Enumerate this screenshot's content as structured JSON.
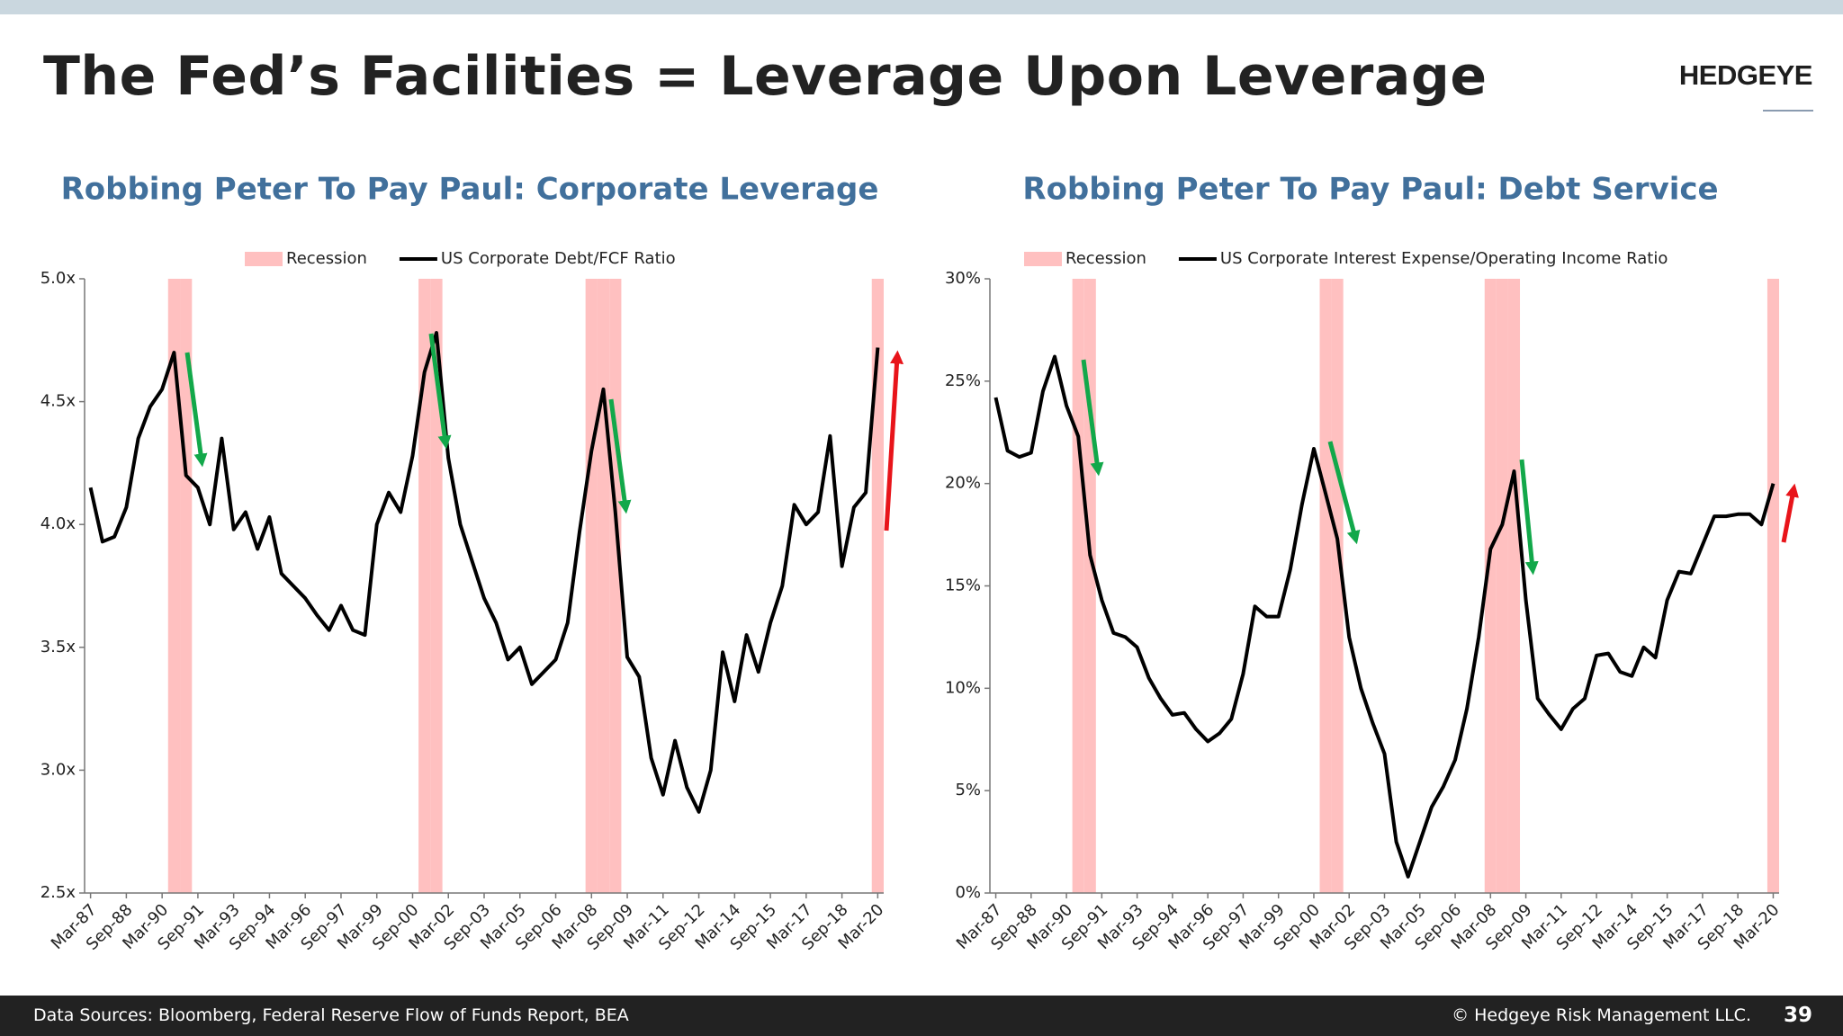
{
  "title": "The Fed’s Facilities = Leverage Upon Leverage",
  "logo": "HEDGEYE",
  "footer": {
    "source": "Data Sources: Bloomberg, Federal Reserve Flow of Funds Report, BEA",
    "copyright": "© Hedgeye Risk Management LLC.",
    "page": "39"
  },
  "chart_data": [
    {
      "type": "line",
      "title": "Robbing Peter To Pay Paul: Corporate Leverage",
      "categories": [
        "Mar-87",
        null,
        null,
        "Sep-88",
        null,
        null,
        "Mar-90",
        null,
        null,
        "Sep-91",
        null,
        null,
        "Mar-93",
        null,
        null,
        "Sep-94",
        null,
        null,
        "Mar-96",
        null,
        null,
        "Sep-97",
        null,
        null,
        "Mar-99",
        null,
        null,
        "Sep-00",
        null,
        null,
        "Mar-02",
        null,
        null,
        "Sep-03",
        null,
        null,
        "Mar-05",
        null,
        null,
        "Sep-06",
        null,
        null,
        "Mar-08",
        null,
        null,
        "Sep-09",
        null,
        null,
        "Mar-11",
        null,
        null,
        "Sep-12",
        null,
        null,
        "Mar-14",
        null,
        null,
        "Sep-15",
        null,
        null,
        "Mar-17",
        null,
        null,
        "Sep-18",
        null,
        null,
        "Mar-20"
      ],
      "series": [
        {
          "name": "Recession",
          "type": "bar",
          "color": "#ffc0c0",
          "values": [
            null,
            null,
            null,
            null,
            null,
            null,
            null,
            5,
            5,
            null,
            null,
            null,
            null,
            null,
            null,
            null,
            null,
            null,
            null,
            null,
            null,
            null,
            null,
            null,
            null,
            null,
            null,
            null,
            5,
            5,
            null,
            null,
            null,
            null,
            null,
            null,
            null,
            null,
            null,
            null,
            null,
            null,
            5,
            5,
            5,
            null,
            null,
            null,
            null,
            null,
            null,
            null,
            null,
            null,
            null,
            null,
            null,
            null,
            null,
            null,
            null,
            null,
            null,
            null,
            null,
            null,
            5
          ]
        },
        {
          "name": "US Corporate Debt/FCF Ratio",
          "type": "line",
          "color": "#000000",
          "values": [
            4.15,
            3.93,
            3.95,
            4.07,
            4.35,
            4.48,
            4.55,
            4.7,
            4.2,
            4.15,
            4.0,
            4.35,
            3.98,
            4.05,
            3.9,
            4.03,
            3.8,
            3.75,
            3.7,
            3.63,
            3.57,
            3.67,
            3.57,
            3.55,
            4.0,
            4.13,
            4.05,
            4.28,
            4.62,
            4.78,
            4.27,
            4.0,
            3.85,
            3.7,
            3.6,
            3.45,
            3.5,
            3.35,
            3.4,
            3.45,
            3.6,
            3.97,
            4.3,
            4.55,
            4.05,
            3.46,
            3.38,
            3.05,
            2.9,
            3.12,
            2.93,
            2.83,
            3.0,
            3.48,
            3.28,
            3.55,
            3.4,
            3.6,
            3.75,
            4.08,
            4.0,
            4.05,
            4.36,
            3.83,
            4.07,
            4.13,
            4.72
          ]
        }
      ],
      "ylim": [
        2.5,
        5
      ],
      "yticks": [
        {
          "value": 2.5,
          "label": "2.5x"
        },
        {
          "value": 3,
          "label": "3.0x"
        },
        {
          "value": 3.5,
          "label": "3.5x"
        },
        {
          "value": 4,
          "label": "4.0x"
        },
        {
          "value": 4.5,
          "label": "4.5x"
        },
        {
          "value": 5,
          "label": "5.0x"
        }
      ],
      "grid": false,
      "legend": "top"
    },
    {
      "type": "line",
      "title": "Robbing Peter To Pay Paul: Debt Service",
      "categories": [
        "Mar-87",
        null,
        null,
        "Sep-88",
        null,
        null,
        "Mar-90",
        null,
        null,
        "Sep-91",
        null,
        null,
        "Mar-93",
        null,
        null,
        "Sep-94",
        null,
        null,
        "Mar-96",
        null,
        null,
        "Sep-97",
        null,
        null,
        "Mar-99",
        null,
        null,
        "Sep-00",
        null,
        null,
        "Mar-02",
        null,
        null,
        "Sep-03",
        null,
        null,
        "Mar-05",
        null,
        null,
        "Sep-06",
        null,
        null,
        "Mar-08",
        null,
        null,
        "Sep-09",
        null,
        null,
        "Mar-11",
        null,
        null,
        "Sep-12",
        null,
        null,
        "Mar-14",
        null,
        null,
        "Sep-15",
        null,
        null,
        "Mar-17",
        null,
        null,
        "Sep-18",
        null,
        null,
        "Mar-20"
      ],
      "series": [
        {
          "name": "Recession",
          "type": "bar",
          "color": "#ffc0c0",
          "values": [
            null,
            null,
            null,
            null,
            null,
            null,
            null,
            30,
            30,
            null,
            null,
            null,
            null,
            null,
            null,
            null,
            null,
            null,
            null,
            null,
            null,
            null,
            null,
            null,
            null,
            null,
            null,
            null,
            30,
            30,
            null,
            null,
            null,
            null,
            null,
            null,
            null,
            null,
            null,
            null,
            null,
            null,
            30,
            30,
            30,
            null,
            null,
            null,
            null,
            null,
            null,
            null,
            null,
            null,
            null,
            null,
            null,
            null,
            null,
            null,
            null,
            null,
            null,
            null,
            null,
            null,
            30
          ]
        },
        {
          "name": "US Corporate Interest Expense/Operating Income Ratio",
          "type": "line",
          "color": "#000000",
          "values": [
            24.2,
            21.6,
            21.3,
            21.5,
            24.5,
            26.2,
            23.8,
            22.3,
            16.5,
            14.3,
            12.7,
            12.5,
            12.0,
            10.5,
            9.5,
            8.7,
            8.8,
            8.0,
            7.4,
            7.8,
            8.5,
            10.7,
            14.0,
            13.5,
            13.5,
            15.8,
            19.0,
            21.7,
            19.5,
            17.3,
            12.5,
            10.0,
            8.3,
            6.8,
            2.5,
            0.8,
            2.5,
            4.2,
            5.2,
            6.5,
            9.0,
            12.5,
            16.8,
            18.0,
            20.6,
            14.3,
            9.5,
            8.7,
            8.0,
            9.0,
            9.5,
            11.6,
            11.7,
            10.8,
            10.6,
            12.0,
            11.5,
            14.3,
            15.7,
            15.6,
            17.0,
            18.4,
            18.4,
            18.5,
            18.5,
            18.0,
            20.0
          ]
        }
      ],
      "ylim": [
        0,
        30
      ],
      "yticks": [
        {
          "value": 0,
          "label": "0%"
        },
        {
          "value": 5,
          "label": "5%"
        },
        {
          "value": 10,
          "label": "10%"
        },
        {
          "value": 15,
          "label": "15%"
        },
        {
          "value": 20,
          "label": "20%"
        },
        {
          "value": 25,
          "label": "25%"
        },
        {
          "value": 30,
          "label": "30%"
        }
      ],
      "grid": false,
      "legend": "top"
    }
  ]
}
